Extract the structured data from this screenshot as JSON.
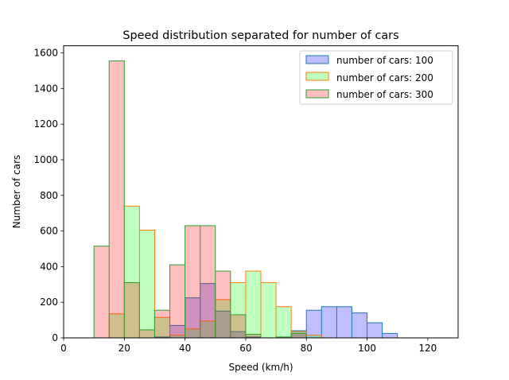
{
  "chart_data": {
    "type": "area",
    "title": "Speed distribution separated for number of cars",
    "xlabel": "Speed (km/h)",
    "ylabel": "Number of cars",
    "xlim": [
      0,
      130
    ],
    "ylim": [
      0,
      1640
    ],
    "xticks": [
      0,
      20,
      40,
      60,
      80,
      100,
      120
    ],
    "yticks": [
      0,
      200,
      400,
      600,
      800,
      1000,
      1200,
      1400,
      1600
    ],
    "legend_position": "upper right",
    "grid": false,
    "series": [
      {
        "name": "number of cars: 100",
        "fill": "#0000ff",
        "fill_opacity": 0.25,
        "edge": "#1f77b4",
        "bin_width": 5,
        "bins": [
          [
            30,
            5
          ],
          [
            35,
            70
          ],
          [
            40,
            225
          ],
          [
            45,
            305
          ],
          [
            50,
            150
          ],
          [
            55,
            35
          ],
          [
            60,
            5
          ],
          [
            75,
            40
          ],
          [
            80,
            155
          ],
          [
            85,
            175
          ],
          [
            90,
            175
          ],
          [
            95,
            140
          ],
          [
            100,
            85
          ],
          [
            105,
            25
          ]
        ]
      },
      {
        "name": "number of cars: 200",
        "fill": "#00ff00",
        "fill_opacity": 0.25,
        "edge": "#ff7f0e",
        "bin_width": 5,
        "bins": [
          [
            15,
            135
          ],
          [
            20,
            740
          ],
          [
            25,
            605
          ],
          [
            30,
            115
          ],
          [
            35,
            15
          ],
          [
            40,
            50
          ],
          [
            45,
            95
          ],
          [
            50,
            215
          ],
          [
            55,
            310
          ],
          [
            60,
            375
          ],
          [
            65,
            310
          ],
          [
            70,
            175
          ],
          [
            75,
            35
          ],
          [
            80,
            15
          ]
        ]
      },
      {
        "name": "number of cars: 300",
        "fill": "#ff0000",
        "fill_opacity": 0.25,
        "edge": "#2ca02c",
        "bin_width": 5,
        "bins": [
          [
            10,
            515
          ],
          [
            15,
            1555
          ],
          [
            20,
            310
          ],
          [
            25,
            45
          ],
          [
            30,
            155
          ],
          [
            35,
            410
          ],
          [
            40,
            630
          ],
          [
            45,
            630
          ],
          [
            50,
            375
          ],
          [
            55,
            130
          ],
          [
            60,
            20
          ],
          [
            70,
            5
          ],
          [
            75,
            25
          ]
        ]
      }
    ]
  }
}
